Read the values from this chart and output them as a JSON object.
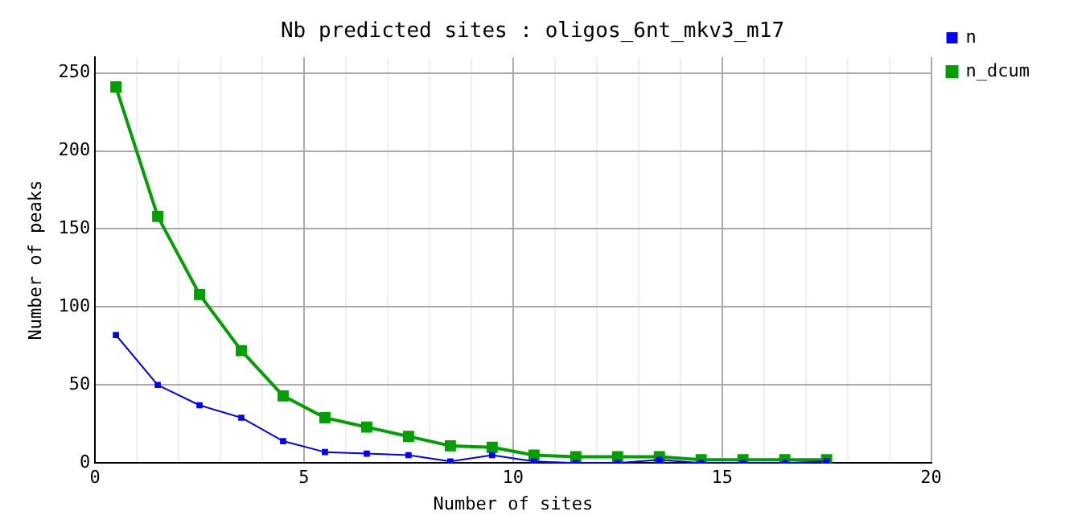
{
  "chart_data": {
    "type": "line",
    "title": "Nb predicted sites : oligos_6nt_mkv3_m17",
    "xlabel": "Number of sites",
    "ylabel": "Number of peaks",
    "x": [
      0.5,
      1.5,
      2.5,
      3.5,
      4.5,
      5.5,
      6.5,
      7.5,
      8.5,
      9.5,
      10.5,
      11.5,
      12.5,
      13.5,
      14.5,
      15.5,
      16.5,
      17.5
    ],
    "series": [
      {
        "name": "n",
        "color": "#0000ff",
        "values": [
          82,
          50,
          37,
          29,
          14,
          7,
          6,
          5,
          1,
          5,
          1,
          0,
          0,
          2,
          0,
          0,
          0,
          1
        ]
      },
      {
        "name": "n_dcum",
        "color": "#00a000",
        "values": [
          241,
          158,
          108,
          72,
          43,
          29,
          23,
          17,
          11,
          10,
          5,
          4,
          4,
          4,
          2,
          2,
          2,
          2
        ]
      }
    ],
    "xlim": [
      0,
      20
    ],
    "xticks": [
      0,
      {
        "value": 1,
        "label": null
      },
      {
        "value": 2,
        "label": null
      },
      {
        "value": 3,
        "label": null
      },
      {
        "value": 4,
        "label": null
      },
      5,
      {
        "value": 6,
        "label": null
      },
      {
        "value": 7,
        "label": null
      },
      {
        "value": 8,
        "label": null
      },
      {
        "value": 9,
        "label": null
      },
      10,
      {
        "value": 11,
        "label": null
      },
      {
        "value": 12,
        "label": null
      },
      {
        "value": 13,
        "label": null
      },
      {
        "value": 14,
        "label": null
      },
      15,
      {
        "value": 16,
        "label": null
      },
      {
        "value": 17,
        "label": null
      },
      {
        "value": 18,
        "label": null
      },
      {
        "value": 19,
        "label": null
      },
      20
    ],
    "ylim": [
      0,
      260
    ],
    "yticks": [
      0,
      50,
      100,
      150,
      200,
      250
    ],
    "grid": true,
    "legend": "top right",
    "marker": "square",
    "line_style": "solid"
  }
}
